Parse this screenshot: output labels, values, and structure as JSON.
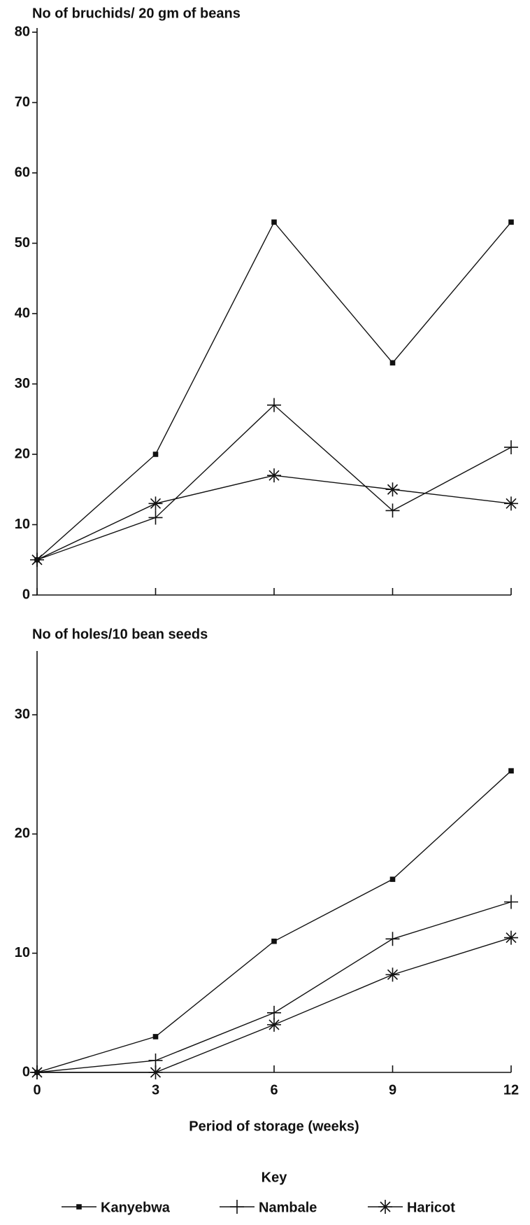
{
  "chart_data": [
    {
      "type": "line",
      "title": "No of bruchids/ 20 gm of beans",
      "x": [
        0,
        3,
        6,
        9,
        12
      ],
      "xlim": [
        0,
        12
      ],
      "xticks": [
        0,
        3,
        6,
        9,
        12
      ],
      "show_xtick_labels": false,
      "ylim": [
        0,
        80
      ],
      "yticks": [
        0,
        10,
        20,
        30,
        40,
        50,
        60,
        70,
        80
      ],
      "series": [
        {
          "marker": "dot",
          "color": "#111",
          "values": [
            5,
            20,
            53,
            33,
            53
          ]
        },
        {
          "marker": "plus",
          "color": "#111",
          "values": [
            5,
            11,
            27,
            12,
            21
          ]
        },
        {
          "marker": "asterisk",
          "color": "#111",
          "values": [
            5,
            13,
            17,
            15,
            13
          ]
        }
      ]
    },
    {
      "type": "line",
      "title": "No of holes/10 bean seeds",
      "x_label": "Period of storage (weeks)",
      "x": [
        0,
        3,
        6,
        9,
        12
      ],
      "xlim": [
        0,
        12
      ],
      "xticks": [
        0,
        3,
        6,
        9,
        12
      ],
      "show_xtick_labels": true,
      "ylim": [
        0,
        35
      ],
      "yticks": [
        0,
        10,
        20,
        30
      ],
      "legend_title": "Key",
      "series": [
        {
          "name": "Kanyebwa",
          "marker": "dot",
          "color": "#111",
          "values": [
            0,
            3,
            11,
            16.2,
            25.3
          ]
        },
        {
          "name": "Nambale",
          "marker": "plus",
          "color": "#111",
          "values": [
            0,
            1,
            5,
            11.2,
            14.3
          ]
        },
        {
          "name": "Haricot",
          "marker": "asterisk",
          "color": "#111",
          "values": [
            0,
            0,
            4,
            8.2,
            11.3
          ]
        }
      ]
    }
  ]
}
